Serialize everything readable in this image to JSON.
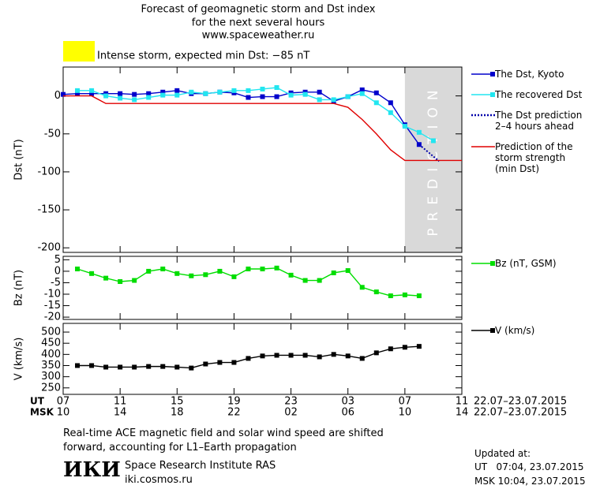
{
  "header": {
    "title_lines": [
      "Forecast of geomagnetic storm and Dst index",
      "for the next several hours",
      "www.spaceweather.ru"
    ],
    "alert": {
      "color": "#ffff00",
      "text": "Intense storm, expected min Dst: −85 nT"
    }
  },
  "chart_data": [
    {
      "type": "line",
      "ylabel": "Dst (nT)",
      "xlim": [
        0,
        28
      ],
      "ylim": [
        -206,
        38
      ],
      "yticks": [
        0,
        -50,
        -100,
        -150,
        -200
      ],
      "shade": {
        "x": [
          24,
          28
        ],
        "color": "#d9d9d9",
        "label": "PREDICTION"
      },
      "series": [
        {
          "name": "The Dst, Kyoto",
          "color": "#0000cc",
          "marker": "square",
          "x": [
            0,
            1,
            2,
            3,
            4,
            5,
            6,
            7,
            8,
            9,
            10,
            11,
            12,
            13,
            14,
            15,
            16,
            17,
            18,
            19,
            20,
            21,
            22,
            23,
            24,
            25
          ],
          "values": [
            2,
            3,
            3,
            3,
            3,
            2,
            3,
            5,
            7,
            3,
            3,
            5,
            4,
            -2,
            -1,
            -1,
            4,
            5,
            5,
            -7,
            -1,
            8,
            4,
            -9,
            -38,
            -64
          ]
        },
        {
          "name": "The recovered Dst",
          "color": "#22e6f0",
          "marker": "square",
          "x": [
            1,
            2,
            3,
            4,
            5,
            6,
            7,
            8,
            9,
            10,
            11,
            12,
            13,
            14,
            15,
            16,
            17,
            18,
            19,
            20,
            21,
            22,
            23,
            24,
            25,
            26
          ],
          "values": [
            7,
            7,
            0,
            -3,
            -5,
            -2,
            1,
            1,
            5,
            3,
            5,
            7,
            7,
            9,
            11,
            1,
            2,
            -5,
            -5,
            -1,
            3,
            -9,
            -22,
            -40,
            -48,
            -59
          ]
        },
        {
          "name": "The Dst prediction\n2–4 hours ahead",
          "color": "#0000aa",
          "marker": "none",
          "dash": true,
          "x": [
            25,
            26.4
          ],
          "values": [
            -64,
            -86
          ]
        },
        {
          "name": "Prediction of the\nstorm strength\n(min Dst)",
          "color": "#e00000",
          "marker": "none",
          "x": [
            0,
            2,
            3,
            19,
            20,
            21,
            22,
            23,
            24,
            28
          ],
          "values": [
            0,
            0,
            -10,
            -10,
            -15,
            -31,
            -50,
            -71,
            -85,
            -85
          ]
        }
      ]
    },
    {
      "type": "line",
      "ylabel": "Bz (nT)",
      "xlim": [
        0,
        28
      ],
      "ylim": [
        -21,
        6.5
      ],
      "yticks": [
        5,
        0,
        -5,
        -10,
        -15,
        -20
      ],
      "series": [
        {
          "name": "Bz (nT, GSM)",
          "color": "#00dd00",
          "marker": "square",
          "x": [
            1,
            2,
            3,
            4,
            5,
            6,
            7,
            8,
            9,
            10,
            11,
            12,
            13,
            14,
            15,
            16,
            17,
            18,
            19,
            20,
            21,
            22,
            23,
            24,
            25
          ],
          "values": [
            1,
            -1,
            -3,
            -4.5,
            -4,
            0,
            1,
            -1,
            -2,
            -1.5,
            0,
            -2.4,
            1,
            1,
            1.4,
            -1.7,
            -4,
            -4,
            -0.7,
            0.3,
            -7,
            -9,
            -10.7,
            -10.3,
            -10.7
          ]
        }
      ]
    },
    {
      "type": "line",
      "ylabel": "V (km/s)",
      "xlim": [
        0,
        28
      ],
      "ylim": [
        221,
        539
      ],
      "yticks": [
        250,
        300,
        350,
        400,
        450,
        500
      ],
      "xticks": [
        {
          "value": 0,
          "label": "07"
        },
        {
          "value": 4,
          "label": "11"
        },
        {
          "value": 8,
          "label": "15"
        },
        {
          "value": 12,
          "label": "19"
        },
        {
          "value": 16,
          "label": "23"
        },
        {
          "value": 20,
          "label": "03"
        },
        {
          "value": 24,
          "label": "07"
        },
        {
          "value": 28,
          "label": "11"
        }
      ],
      "msk_labels": [
        "10",
        "14",
        "18",
        "22",
        "02",
        "06",
        "10",
        "14"
      ],
      "ut_label": "UT",
      "msk_label": "MSK",
      "date_range": "22.07–23.07.2015",
      "series": [
        {
          "name": "V (km/s)",
          "color": "#000000",
          "marker": "square",
          "x": [
            1,
            2,
            3,
            4,
            5,
            6,
            7,
            8,
            9,
            10,
            11,
            12,
            13,
            14,
            15,
            16,
            17,
            18,
            19,
            20,
            21,
            22,
            23,
            24,
            25
          ],
          "values": [
            350,
            350,
            343,
            343,
            343,
            346,
            346,
            343,
            339,
            357,
            364,
            364,
            382,
            393,
            396,
            396,
            396,
            389,
            400,
            393,
            382,
            407,
            425,
            432,
            436
          ]
        }
      ]
    }
  ],
  "footer": {
    "note": "Real-time ACE magnetic field and solar wind speed are shifted\nforward, accounting for L1–Earth propagation",
    "logo": "ИКИ",
    "institute": "Space Research Institute RAS",
    "site": "iki.cosmos.ru",
    "updated": "Updated at:",
    "ut_time": "UT   07:04, 23.07.2015",
    "msk_time": "MSK 10:04, 23.07.2015"
  }
}
